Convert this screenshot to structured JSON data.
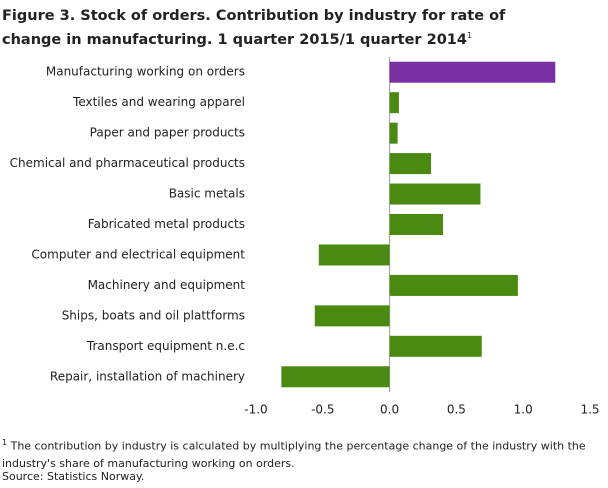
{
  "chart_data": {
    "type": "hbar",
    "title": "Figure 3. Stock of orders.  Contribution by industry for rate of change in manufacturing. 1 quarter 2015/1 quarter 2014",
    "title_note": "1",
    "categories": [
      "Manufacturing working on orders",
      "Textiles and wearing apparel",
      "Paper and paper products",
      "Chemical and pharmaceutical products",
      "Basic metals",
      "Fabricated metal products",
      "Computer and electrical equipment",
      "Machinery and equipment",
      "Ships, boats and oil plattforms",
      "Transport equipment n.e.c",
      "Repair, installation of machinery"
    ],
    "values": [
      1.24,
      0.07,
      0.06,
      0.31,
      0.68,
      0.4,
      -0.53,
      0.96,
      -0.56,
      0.69,
      -0.81
    ],
    "colors": [
      "#7a2fa3",
      "#4b8a10",
      "#4b8a10",
      "#4b8a10",
      "#4b8a10",
      "#4b8a10",
      "#4b8a10",
      "#4b8a10",
      "#4b8a10",
      "#4b8a10",
      "#4b8a10"
    ],
    "xlim": [
      -1.0,
      1.5
    ],
    "xticks": [
      {
        "value": -1.0,
        "label": "-1.0"
      },
      {
        "value": -0.5,
        "label": "-0.5"
      },
      {
        "value": 0,
        "label": "0.0"
      },
      {
        "value": 0.5,
        "label": "0.5"
      },
      {
        "value": 1.0,
        "label": "1.0"
      },
      {
        "value": 1.5,
        "label": "1.5"
      }
    ],
    "footnote_marker": "1",
    "footnote": "The contribution  by industry is calculated by multiplying  the percentage change of the industry with the industry's share of manufacturing working on orders.",
    "source": "Source: Statistics Norway."
  }
}
